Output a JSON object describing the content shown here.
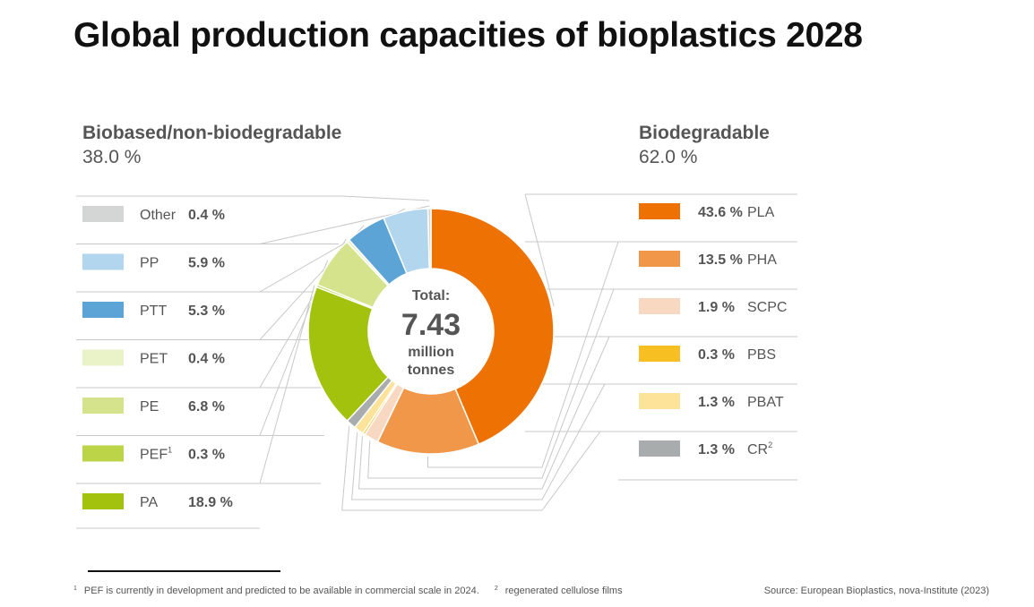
{
  "chart_data": {
    "type": "pie",
    "title": "Global production capacities of bioplastics 2028",
    "total": {
      "label": "Total:",
      "value": "7.43",
      "unit_line1": "million",
      "unit_line2": "tonnes"
    },
    "groups": [
      {
        "name": "Biodegradable",
        "share": 62.0,
        "share_label": "62.0 %",
        "slices": [
          {
            "name": "PLA",
            "value": 43.6,
            "label": "43.6 %",
            "color": "#ee7203"
          },
          {
            "name": "PHA",
            "value": 13.5,
            "label": "13.5 %",
            "color": "#f0974a"
          },
          {
            "name": "SCPC",
            "value": 1.9,
            "label": "1.9 %",
            "color": "#f9d8c2"
          },
          {
            "name": "PBS",
            "value": 0.3,
            "label": "0.3 %",
            "color": "#f8bf22"
          },
          {
            "name": "PBAT",
            "value": 1.3,
            "label": "1.3 %",
            "color": "#fde39a"
          },
          {
            "name": "CR",
            "sup": "2",
            "value": 1.3,
            "label": "1.3 %",
            "color": "#a8acad"
          }
        ]
      },
      {
        "name": "Biobased/non-biodegradable",
        "share": 38.0,
        "share_label": "38.0 %",
        "slices": [
          {
            "name": "PA",
            "value": 18.9,
            "label": "18.9 %",
            "color": "#a3c20e"
          },
          {
            "name": "PEF",
            "sup": "1",
            "value": 0.3,
            "label": "0.3 %",
            "color": "#bcd548"
          },
          {
            "name": "PE",
            "value": 6.8,
            "label": "6.8 %",
            "color": "#d5e48c"
          },
          {
            "name": "PET",
            "value": 0.4,
            "label": "0.4 %",
            "color": "#eaf2c8"
          },
          {
            "name": "PTT",
            "value": 5.3,
            "label": "5.3 %",
            "color": "#5ba4d5"
          },
          {
            "name": "PP",
            "value": 5.9,
            "label": "5.9 %",
            "color": "#b2d6ee"
          },
          {
            "name": "Other",
            "value": 0.4,
            "label": "0.4 %",
            "color": "#d4d6d6"
          }
        ]
      }
    ]
  },
  "footnotes": {
    "note1_mark": "1",
    "note1": "PEF is currently in development and predicted to be available in commercial scale in 2024.",
    "note2_mark": "2",
    "note2": "regenerated cellulose films"
  },
  "source": "Source: European Bioplastics, nova-Institute (2023)"
}
